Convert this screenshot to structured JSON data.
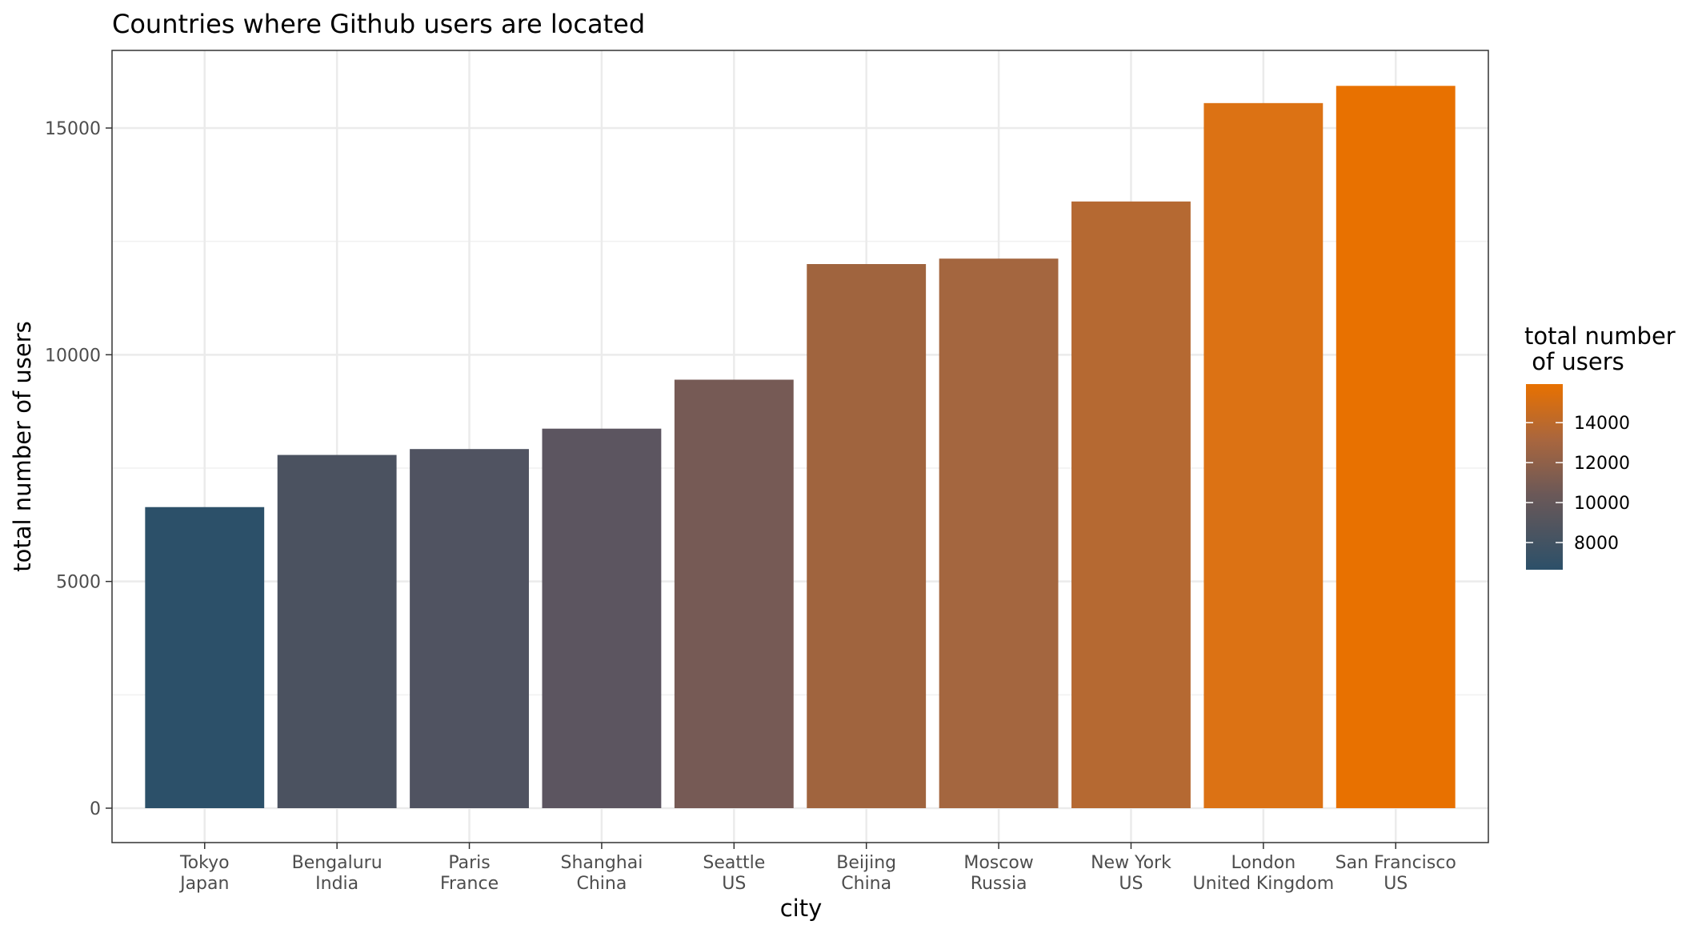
{
  "chart_data": {
    "type": "bar",
    "title": "Countries where Github users are located",
    "xlabel": "city",
    "ylabel": "total number of users",
    "ylim": [
      0,
      16500
    ],
    "y_ticks": [
      0,
      5000,
      10000,
      15000
    ],
    "grid": true,
    "legend_placement": "right",
    "legend": {
      "title_line1": "total number",
      "title_line2": " of users",
      "range": [
        6640,
        15930
      ],
      "ticks": [
        8000,
        10000,
        12000,
        14000
      ],
      "color_low": "#2c5069",
      "color_high": "#e87100"
    },
    "categories": [
      {
        "city": "Tokyo",
        "country": "Japan"
      },
      {
        "city": "Bengaluru",
        "country": "India"
      },
      {
        "city": "Paris",
        "country": "France"
      },
      {
        "city": "Shanghai",
        "country": "China"
      },
      {
        "city": "Seattle",
        "country": "US"
      },
      {
        "city": "Beijing",
        "country": "China"
      },
      {
        "city": "Moscow",
        "country": "Russia"
      },
      {
        "city": "New York",
        "country": "US"
      },
      {
        "city": "London",
        "country": "United Kingdom"
      },
      {
        "city": "San Francisco",
        "country": "US"
      }
    ],
    "values": [
      6640,
      7790,
      7920,
      8370,
      9450,
      12000,
      12120,
      13380,
      15550,
      15930
    ],
    "bar_colors": [
      "#2c5069",
      "#4b5260",
      "#505361",
      "#5c5560",
      "#765a55",
      "#a0643e",
      "#a4663f",
      "#b56932",
      "#dc7214",
      "#e87100"
    ]
  }
}
